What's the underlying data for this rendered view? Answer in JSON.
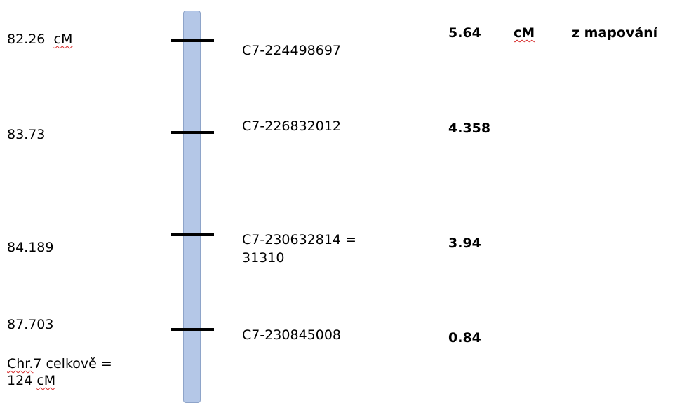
{
  "left_labels": {
    "m1_value": "82.26",
    "m1_unit": "cM",
    "m2": "83.73",
    "m3": "84.189",
    "m4": "87.703",
    "total_line1_abbr": "Chr.",
    "total_line1_rest": "7 celkově =",
    "total_line2_value": "124",
    "total_line2_unit": "cM"
  },
  "markers": [
    {
      "id": "C7-224498697"
    },
    {
      "id": "C7-226832012"
    },
    {
      "id_line1": "C7-230632814 =",
      "id_line2": "31310"
    },
    {
      "id": "C7-230845008"
    }
  ],
  "right_values": {
    "v1": "5.64",
    "v1_unit": "cM",
    "v1_note": "z mapování",
    "v2": "4.358",
    "v3": "3.94",
    "v4": "0.84"
  },
  "colors": {
    "chromosome_fill": "#b4c7e7",
    "chromosome_border": "#8ea4c9",
    "spellcheck_underline": "#d62a2a"
  }
}
